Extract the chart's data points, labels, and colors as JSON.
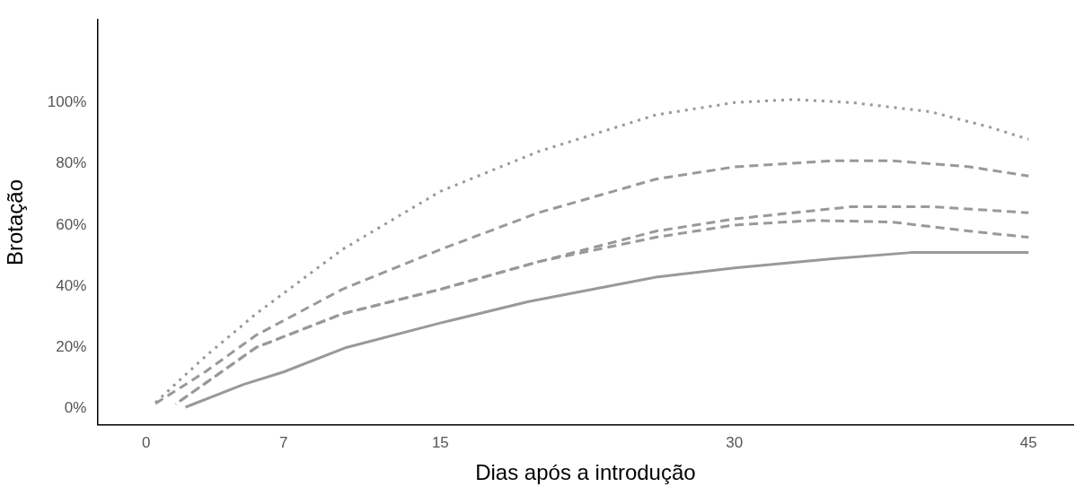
{
  "chart_data": {
    "type": "line",
    "xlabel": "Dias após a introdução",
    "ylabel": "Brotação",
    "xlim": [
      -2.5,
      47.3
    ],
    "ylim": [
      -5.3,
      127
    ],
    "xticks": [
      0,
      7,
      15,
      30,
      45
    ],
    "yticks": [
      {
        "value": 0,
        "label": "0%"
      },
      {
        "value": 20,
        "label": "20%"
      },
      {
        "value": 40,
        "label": "40%"
      },
      {
        "value": 60,
        "label": "60%"
      },
      {
        "value": 80,
        "label": "80%"
      },
      {
        "value": 100,
        "label": "100%"
      }
    ],
    "grid": false,
    "legend": false,
    "marker": "none",
    "series": [
      {
        "color": "#999999",
        "line_style": "dotted",
        "x": [
          0.3,
          3,
          5.6,
          10,
          15,
          20,
          26,
          30,
          33,
          36,
          40,
          43,
          45
        ],
        "values": [
          1,
          17,
          31,
          52,
          71,
          84,
          96,
          100,
          101,
          100,
          97,
          92,
          88
        ]
      },
      {
        "color": "#999999",
        "line_style": "dashed",
        "x": [
          0.3,
          3,
          5.6,
          10,
          15,
          20,
          26,
          30,
          35,
          38,
          42,
          45
        ],
        "values": [
          1,
          12,
          24,
          39,
          52,
          64,
          75,
          79,
          81,
          81,
          79,
          76
        ]
      },
      {
        "color": "#999999",
        "line_style": "dashed",
        "x": [
          1.5,
          5.6,
          10,
          15,
          20,
          26,
          30,
          33,
          36,
          40,
          45
        ],
        "values": [
          1.5,
          20,
          31,
          39,
          48,
          58,
          62,
          64,
          66,
          66,
          64
        ]
      },
      {
        "color": "#999999",
        "line_style": "dashed",
        "x": [
          1.5,
          5.6,
          10,
          15,
          20,
          26,
          30,
          34,
          38,
          42,
          45
        ],
        "values": [
          1.5,
          20,
          31,
          39,
          48,
          56,
          60,
          61.5,
          61,
          58,
          56
        ]
      },
      {
        "color": "#999999",
        "line_style": "solid",
        "x": [
          2,
          5,
          7,
          10.2,
          15,
          19.5,
          26,
          30,
          35,
          39,
          45
        ],
        "values": [
          0.5,
          8,
          12,
          20,
          28,
          35,
          43,
          46,
          49,
          51,
          51
        ]
      }
    ]
  }
}
